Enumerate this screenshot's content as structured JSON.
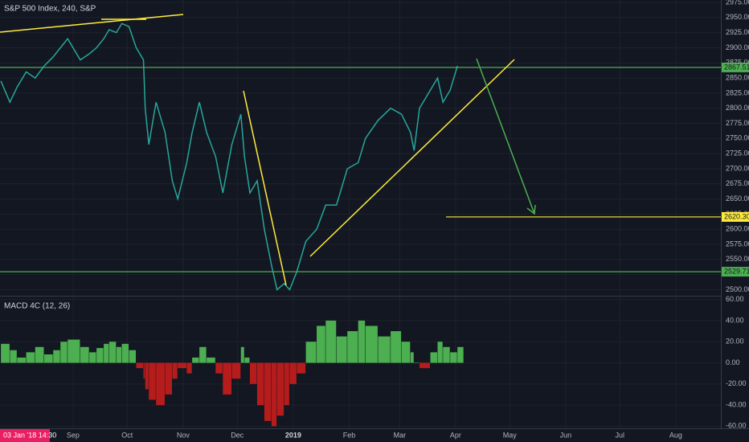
{
  "crosshair_label": "03 Jan '18 14:30",
  "chart_data": [
    {
      "type": "line",
      "title": "S&P 500 Index, 240, S&P",
      "color": "#26a69a",
      "x": [
        -9,
        -4,
        0,
        5,
        10,
        15,
        20,
        24,
        28,
        35,
        40,
        44,
        48,
        51,
        55,
        58,
        62,
        66,
        70,
        71,
        73,
        77,
        82,
        86,
        89,
        94,
        97,
        101,
        105,
        110,
        114,
        119,
        124,
        126,
        129,
        133,
        137,
        141,
        144,
        148,
        151,
        155,
        160,
        166,
        171,
        177,
        183,
        189,
        193,
        200,
        207,
        213,
        218,
        220,
        223,
        229,
        233,
        236,
        240,
        244
      ],
      "values": [
        2845,
        2810,
        2835,
        2860,
        2850,
        2870,
        2885,
        2900,
        2915,
        2880,
        2890,
        2900,
        2915,
        2930,
        2925,
        2940,
        2935,
        2900,
        2880,
        2800,
        2740,
        2810,
        2760,
        2680,
        2650,
        2710,
        2760,
        2810,
        2760,
        2720,
        2660,
        2740,
        2790,
        2720,
        2660,
        2680,
        2600,
        2540,
        2500,
        2510,
        2500,
        2530,
        2580,
        2600,
        2640,
        2640,
        2700,
        2710,
        2750,
        2780,
        2800,
        2790,
        2760,
        2730,
        2800,
        2830,
        2850,
        2810,
        2830,
        2870
      ],
      "xlim": [
        -9.5,
        390
      ],
      "ylim": [
        2490,
        2975
      ],
      "yticks": [
        {
          "value": 2500,
          "label": "2500.00"
        },
        {
          "value": 2525,
          "label": "2525.00"
        },
        {
          "value": 2550,
          "label": "2550.00"
        },
        {
          "value": 2575,
          "label": "2575.00"
        },
        {
          "value": 2600,
          "label": "2600.00"
        },
        {
          "value": 2625,
          "label": "2625.00"
        },
        {
          "value": 2650,
          "label": "2650.00"
        },
        {
          "value": 2675,
          "label": "2675.00"
        },
        {
          "value": 2700,
          "label": "2700.00"
        },
        {
          "value": 2725,
          "label": "2725.00"
        },
        {
          "value": 2750,
          "label": "2750.00"
        },
        {
          "value": 2775,
          "label": "2775.00"
        },
        {
          "value": 2800,
          "label": "2800.00"
        },
        {
          "value": 2825,
          "label": "2825.00"
        },
        {
          "value": 2850,
          "label": "2850.00"
        },
        {
          "value": 2875,
          "label": "2875.00"
        },
        {
          "value": 2900,
          "label": "2900.00"
        },
        {
          "value": 2925,
          "label": "2925.00"
        },
        {
          "value": 2950,
          "label": "2950.00"
        },
        {
          "value": 2975,
          "label": "2975.00"
        }
      ],
      "levels": [
        {
          "value": 2867.51,
          "label": "2867.51",
          "color": "#4caf50"
        },
        {
          "value": 2620.3,
          "label": "2620.30",
          "color": "#ffeb3b"
        },
        {
          "value": 2529.71,
          "label": "2529.71",
          "color": "#4caf50"
        }
      ],
      "grid": true
    },
    {
      "type": "histogram",
      "title": "MACD 4C (12, 26)",
      "positive_color": "#4caf50",
      "negative_color": "#b71c1c",
      "x": [
        -9,
        -4,
        0,
        5,
        10,
        15,
        20,
        24,
        28,
        35,
        40,
        44,
        48,
        51,
        55,
        58,
        62,
        66,
        70,
        71,
        73,
        77,
        82,
        86,
        89,
        94,
        97,
        101,
        105,
        110,
        114,
        119,
        124,
        126,
        129,
        133,
        137,
        141,
        144,
        148,
        151,
        155,
        160,
        166,
        171,
        177,
        183,
        189,
        193,
        200,
        207,
        213,
        218,
        220,
        223,
        229,
        233,
        236,
        240,
        244
      ],
      "values": [
        18,
        12,
        5,
        10,
        15,
        8,
        12,
        20,
        22,
        15,
        10,
        14,
        18,
        20,
        15,
        18,
        12,
        -5,
        -15,
        -25,
        -35,
        -40,
        -30,
        -15,
        -5,
        -10,
        5,
        15,
        5,
        -10,
        -30,
        -15,
        15,
        5,
        -20,
        -40,
        -55,
        -60,
        -50,
        -40,
        -20,
        -10,
        20,
        35,
        40,
        25,
        30,
        40,
        35,
        25,
        30,
        20,
        10,
        0,
        -5,
        10,
        20,
        15,
        10,
        15
      ],
      "xlim": [
        -9.5,
        390
      ],
      "ylim": [
        -62,
        62
      ],
      "yticks": [
        {
          "value": 60,
          "label": "60.00"
        },
        {
          "value": 40,
          "label": "40.00"
        },
        {
          "value": 20,
          "label": "20.00"
        },
        {
          "value": 0,
          "label": "0.00"
        },
        {
          "value": -20,
          "label": "-20.00"
        },
        {
          "value": -40,
          "label": "-40.00"
        },
        {
          "value": -60,
          "label": "-60.00"
        }
      ],
      "xticks": [
        {
          "value": 31,
          "label": "Sep"
        },
        {
          "value": 61,
          "label": "Oct"
        },
        {
          "value": 92,
          "label": "Nov"
        },
        {
          "value": 122,
          "label": "Dec"
        },
        {
          "value": 153,
          "label": "2019"
        },
        {
          "value": 184,
          "label": "Feb"
        },
        {
          "value": 212,
          "label": "Mar"
        },
        {
          "value": 243,
          "label": "Apr"
        },
        {
          "value": 273,
          "label": "May"
        },
        {
          "value": 304,
          "label": "Jun"
        },
        {
          "value": 334,
          "label": "Jul"
        },
        {
          "value": 365,
          "label": "Aug"
        }
      ],
      "grid": true
    }
  ]
}
